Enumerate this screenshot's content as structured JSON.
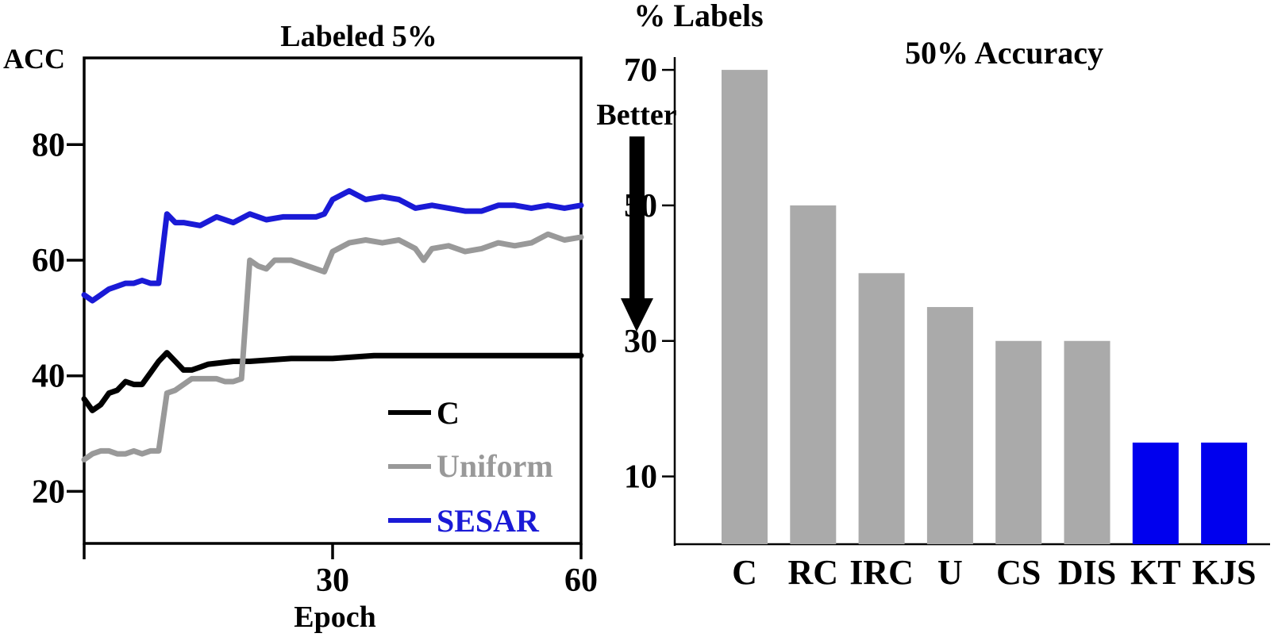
{
  "chart_data": [
    {
      "type": "line",
      "title": "Labeled 5%",
      "xlabel": "Epoch",
      "ylabel": "ACC",
      "xlim": [
        0,
        60
      ],
      "ylim": [
        11,
        95
      ],
      "xticks": [
        30,
        60
      ],
      "yticks": [
        20,
        40,
        60,
        80
      ],
      "legend_position": "bottom-right",
      "series": [
        {
          "name": "C",
          "color": "#000000",
          "x": [
            0,
            1,
            2,
            3,
            4,
            5,
            6,
            7,
            8,
            9,
            10,
            11,
            12,
            13,
            14,
            15,
            18,
            20,
            25,
            30,
            35,
            40,
            45,
            50,
            55,
            60
          ],
          "y": [
            36,
            34,
            35,
            37,
            37.5,
            39,
            38.5,
            38.5,
            40.5,
            42.5,
            44,
            42.5,
            41,
            41,
            41.5,
            42,
            42.5,
            42.5,
            43,
            43,
            43.5,
            43.5,
            43.5,
            43.5,
            43.5,
            43.5
          ]
        },
        {
          "name": "Uniform",
          "color": "#999999",
          "x": [
            0,
            1,
            2,
            3,
            4,
            5,
            6,
            7,
            8,
            9,
            10,
            11,
            12,
            13,
            14,
            15,
            16,
            17,
            18,
            19,
            20,
            21,
            22,
            23,
            25,
            27,
            29,
            30,
            32,
            34,
            36,
            38,
            40,
            41,
            42,
            44,
            46,
            48,
            50,
            52,
            54,
            56,
            58,
            60
          ],
          "y": [
            25.5,
            26.5,
            27,
            27,
            26.5,
            26.5,
            27,
            26.5,
            27,
            27,
            37,
            37.5,
            38.5,
            39.5,
            39.5,
            39.5,
            39.5,
            39,
            39,
            39.5,
            60,
            59,
            58.5,
            60,
            60,
            59,
            58,
            61.5,
            63,
            63.5,
            63,
            63.5,
            62,
            60,
            62,
            62.5,
            61.5,
            62,
            63,
            62.5,
            63,
            64.5,
            63.5,
            64
          ]
        },
        {
          "name": "SESAR",
          "color": "#1a1ad6",
          "x": [
            0,
            1,
            2,
            3,
            4,
            5,
            6,
            7,
            8,
            9,
            10,
            11,
            12,
            14,
            16,
            18,
            20,
            22,
            24,
            26,
            28,
            29,
            30,
            32,
            34,
            36,
            38,
            40,
            42,
            44,
            46,
            48,
            50,
            52,
            54,
            56,
            58,
            60
          ],
          "y": [
            54,
            53,
            54,
            55,
            55.5,
            56,
            56,
            56.5,
            56,
            56,
            68,
            66.5,
            66.5,
            66,
            67.5,
            66.5,
            68,
            67,
            67.5,
            67.5,
            67.5,
            68,
            70.5,
            72,
            70.5,
            71,
            70.5,
            69,
            69.5,
            69,
            68.5,
            68.5,
            69.5,
            69.5,
            69,
            69.5,
            69,
            69.5
          ]
        }
      ]
    },
    {
      "type": "bar",
      "title": "50% Accuracy",
      "ylabel": "% Labels",
      "annotation": "Better",
      "categories": [
        "C",
        "RC",
        "IRC",
        "U",
        "CS",
        "DIS",
        "KT",
        "KJS"
      ],
      "values": [
        70,
        50,
        40,
        35,
        30,
        30,
        15,
        15
      ],
      "colors": [
        "#aaaaaa",
        "#aaaaaa",
        "#aaaaaa",
        "#aaaaaa",
        "#aaaaaa",
        "#aaaaaa",
        "#0000ee",
        "#0000ee"
      ],
      "ylim": [
        0,
        72
      ],
      "yticks": [
        10,
        30,
        50,
        70
      ]
    }
  ]
}
